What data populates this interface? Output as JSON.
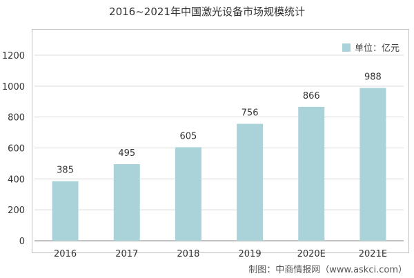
{
  "chart_data": {
    "type": "bar",
    "title": "2016~2021年中国激光设备市场规模统计",
    "categories": [
      "2016",
      "2017",
      "2018",
      "2019",
      "2020E",
      "2021E"
    ],
    "series": [
      {
        "name": "单位：亿元",
        "values": [
          385,
          495,
          605,
          756,
          866,
          988
        ]
      }
    ],
    "ylim": [
      0,
      1200
    ],
    "yticks": [
      0,
      200,
      400,
      600,
      800,
      1000,
      1200
    ],
    "xlabel": "",
    "ylabel": "",
    "grid": true,
    "legend_position": "top-right",
    "bar_color": "#a9d3d9",
    "grid_color": "#d9d9d9",
    "axis_color": "#808080"
  },
  "source_note": "制图：中商情报网（www.askci.com）"
}
